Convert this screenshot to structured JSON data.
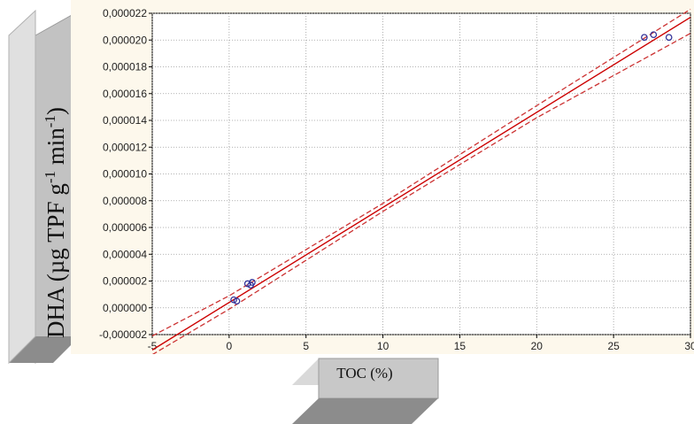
{
  "chart_data": {
    "type": "scatter",
    "xlabel": "TOC (%)",
    "ylabel": "DHA (µg TPF g-1 min-1)",
    "ylabel_parts": [
      "DHA (µg TPF g",
      "-1",
      " min",
      "-1",
      ")"
    ],
    "xlim": [
      -5,
      30
    ],
    "ylim": [
      -2e-06,
      2.2e-05
    ],
    "x_ticks": [
      -5,
      0,
      5,
      10,
      15,
      20,
      25,
      30
    ],
    "x_tick_labels": [
      "-5",
      "0",
      "5",
      "10",
      "15",
      "20",
      "25",
      "30"
    ],
    "y_ticks": [
      -2e-06,
      0,
      2e-06,
      4e-06,
      6e-06,
      8e-06,
      1e-05,
      1.2e-05,
      1.4e-05,
      1.6e-05,
      1.8e-05,
      2e-05,
      2.2e-05
    ],
    "y_tick_labels": [
      "-0,000002",
      "0,000000",
      "0,000002",
      "0,000004",
      "0,000006",
      "0,000008",
      "0,000010",
      "0,000012",
      "0,000014",
      "0,000016",
      "0,000018",
      "0,000020",
      "0,000022"
    ],
    "grid": true,
    "series": [
      {
        "kind": "points",
        "points": [
          {
            "x": 0.3,
            "y": 6e-07
          },
          {
            "x": 0.5,
            "y": 5e-07
          },
          {
            "x": 1.2,
            "y": 1.8e-06
          },
          {
            "x": 1.5,
            "y": 1.9e-06
          },
          {
            "x": 1.4,
            "y": 1.7e-06
          },
          {
            "x": 27.0,
            "y": 2.02e-05
          },
          {
            "x": 27.6,
            "y": 2.04e-05
          },
          {
            "x": 28.6,
            "y": 2.02e-05
          }
        ]
      },
      {
        "kind": "regression",
        "intercept": 4e-07,
        "slope": 7.1e-07
      },
      {
        "kind": "confidence_band",
        "upper": {
          "x": [
            -5,
            0,
            10,
            20,
            30
          ],
          "y": [
            -2.1e-06,
            9e-07,
            7.8e-06,
            1.51e-05,
            2.23e-05
          ]
        },
        "lower": {
          "x": [
            -5,
            0,
            10,
            20,
            30
          ],
          "y": [
            -3.5e-06,
            -1e-07,
            7.2e-06,
            1.42e-05,
            2.05e-05
          ]
        }
      }
    ],
    "colors": {
      "regression": "#cc0000",
      "confidence": "#cc3333",
      "points": "#333399",
      "grid": "#9a9a9a",
      "plot_bg": "#ffffff",
      "frame_bg": "#fdf8ec"
    }
  }
}
